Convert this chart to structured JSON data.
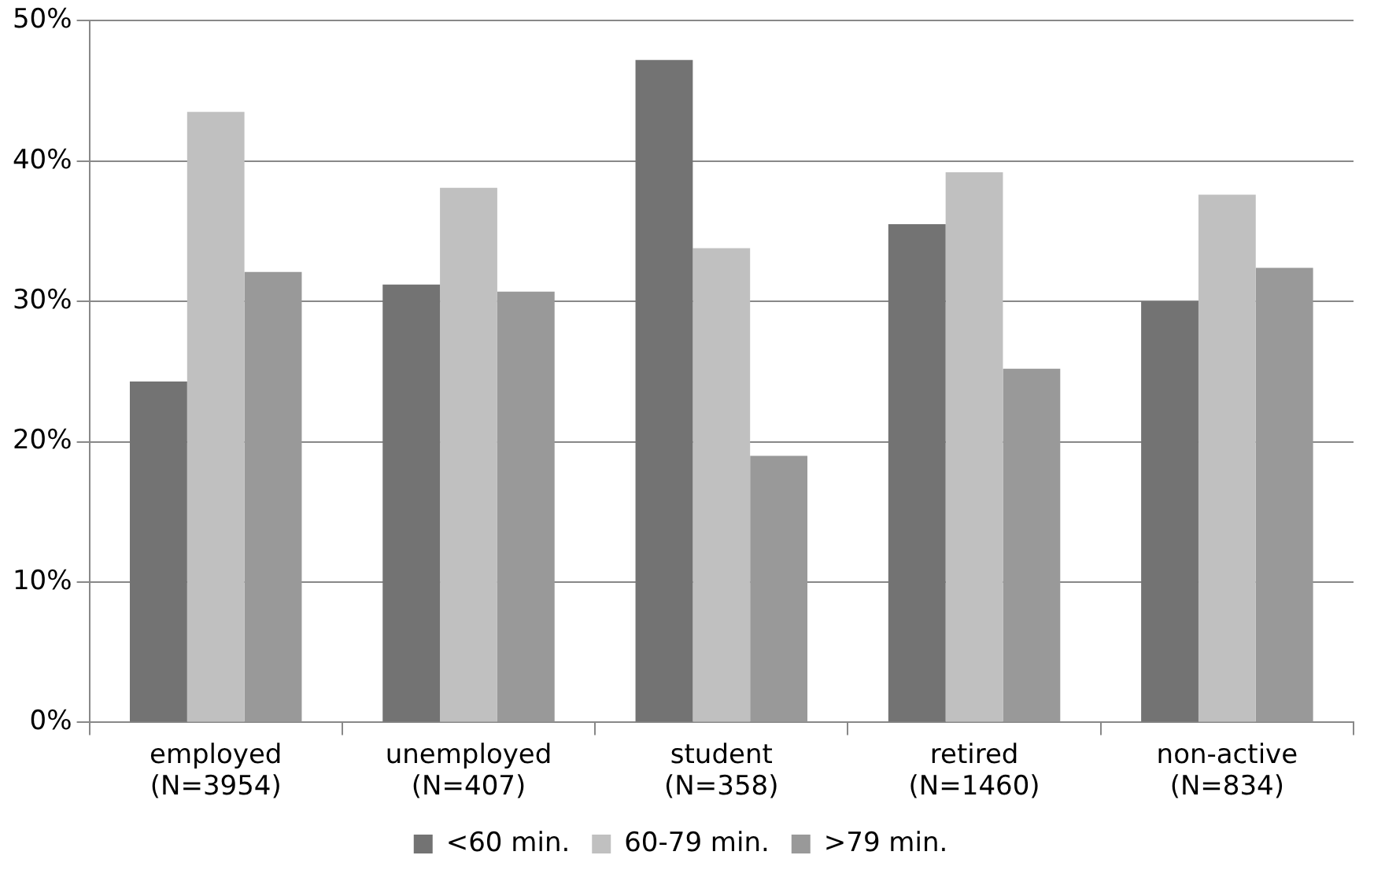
{
  "chart_data": {
    "type": "bar",
    "categories": [
      "employed\n(N=3954)",
      "unemployed\n(N=407)",
      "student\n(N=358)",
      "retired\n(N=1460)",
      "non-active\n(N=834)"
    ],
    "series": [
      {
        "name": "<60 min.",
        "color": "#737373",
        "values": [
          24.3,
          31.2,
          47.2,
          35.5,
          30.0
        ]
      },
      {
        "name": "60-79 min.",
        "color": "#c0c0c0",
        "values": [
          43.5,
          38.1,
          33.8,
          39.2,
          37.6
        ]
      },
      {
        "name": ">79 min.",
        "color": "#999999",
        "values": [
          32.1,
          30.7,
          19.0,
          25.2,
          32.4
        ]
      }
    ],
    "ylim": [
      0,
      50
    ],
    "yticks": [
      {
        "value": 0,
        "label": "0%"
      },
      {
        "value": 10,
        "label": "10%"
      },
      {
        "value": 20,
        "label": "20%"
      },
      {
        "value": 30,
        "label": "30%"
      },
      {
        "value": 40,
        "label": "40%"
      },
      {
        "value": 50,
        "label": "50%"
      }
    ],
    "grid": "y",
    "legend": "bottom"
  }
}
